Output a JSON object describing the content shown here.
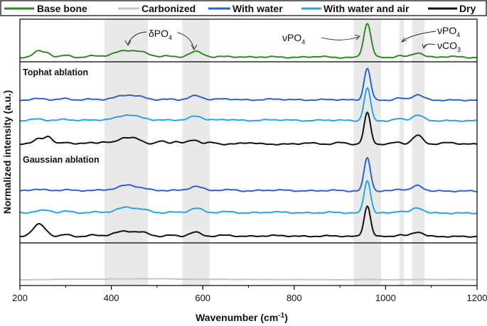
{
  "chart_data": {
    "type": "line",
    "title": "",
    "xlabel_main": "Wavenumber (cm",
    "xlabel_sup": "-1",
    "xlabel_end": ")",
    "ylabel": "Normalized intensity (a.u.)",
    "xlim": [
      200,
      1200
    ],
    "xticks": [
      200,
      400,
      600,
      800,
      1000,
      1200
    ],
    "legend_position": "top",
    "legend": [
      {
        "name": "Base bone",
        "color": "#2e8b22"
      },
      {
        "name": "Carbonized",
        "color": "#c4c4c4"
      },
      {
        "name": "With water",
        "color": "#2a62d2"
      },
      {
        "name": "With water and air",
        "color": "#2aa3e4"
      },
      {
        "name": "Dry",
        "color": "#111111"
      }
    ],
    "highlight_bands_cm": [
      [
        385,
        480
      ],
      [
        555,
        615
      ],
      [
        930,
        990
      ],
      [
        1030,
        1040
      ],
      [
        1058,
        1085
      ]
    ],
    "panels": [
      {
        "name": "top",
        "label": ""
      },
      {
        "name": "tophat",
        "label": "Tophat ablation"
      },
      {
        "name": "gaussian",
        "label": "Gaussian ablation"
      },
      {
        "name": "carbonized",
        "label": ""
      }
    ],
    "annotations": [
      {
        "id": "dpo4",
        "main": "δPO",
        "sub": "4",
        "x": 480
      },
      {
        "id": "vpo4",
        "main": "νPO",
        "sub": "4",
        "x": 860
      },
      {
        "id": "vpo4b",
        "main": "νPO",
        "sub": "4",
        "x": 1135
      },
      {
        "id": "vco3",
        "main": "νCO",
        "sub": "3",
        "x": 1135
      }
    ],
    "peak_model": {
      "note": "Spectra shown as normalized intensity (0-1) vs wavenumber; approximated by Gaussian peaks [center_cm, height, width_cm]"
    },
    "series": [
      {
        "name": "Base bone",
        "panel": "top",
        "color": "#2e8b22",
        "peaks": [
          [
            240,
            0.18,
            12
          ],
          [
            262,
            0.1,
            9
          ],
          [
            300,
            0.06,
            12
          ],
          [
            360,
            0.04,
            15
          ],
          [
            433,
            0.2,
            28
          ],
          [
            470,
            0.07,
            18
          ],
          [
            520,
            0.04,
            14
          ],
          [
            585,
            0.17,
            16
          ],
          [
            655,
            0.03,
            20
          ],
          [
            740,
            0.02,
            30
          ],
          [
            850,
            0.03,
            20
          ],
          [
            960,
            1.0,
            8
          ],
          [
            1030,
            0.05,
            10
          ],
          [
            1070,
            0.14,
            12
          ],
          [
            1140,
            0.03,
            20
          ]
        ]
      },
      {
        "name": "With water (tophat)",
        "panel": "tophat",
        "color": "#2a62d2",
        "peaks": [
          [
            245,
            0.05,
            15
          ],
          [
            300,
            0.05,
            12
          ],
          [
            360,
            0.03,
            15
          ],
          [
            432,
            0.16,
            22
          ],
          [
            470,
            0.06,
            15
          ],
          [
            530,
            0.03,
            15
          ],
          [
            585,
            0.14,
            14
          ],
          [
            650,
            0.04,
            20
          ],
          [
            760,
            0.03,
            30
          ],
          [
            880,
            0.02,
            25
          ],
          [
            960,
            1.0,
            7
          ],
          [
            1030,
            0.06,
            10
          ],
          [
            1070,
            0.17,
            12
          ]
        ]
      },
      {
        "name": "With water and air (tophat)",
        "panel": "tophat",
        "color": "#2aa3e4",
        "peaks": [
          [
            240,
            0.06,
            12
          ],
          [
            300,
            0.05,
            12
          ],
          [
            360,
            0.03,
            15
          ],
          [
            432,
            0.17,
            22
          ],
          [
            470,
            0.06,
            15
          ],
          [
            530,
            0.03,
            15
          ],
          [
            585,
            0.15,
            14
          ],
          [
            650,
            0.04,
            20
          ],
          [
            760,
            0.03,
            30
          ],
          [
            880,
            0.02,
            25
          ],
          [
            960,
            1.0,
            7
          ],
          [
            1030,
            0.06,
            10
          ],
          [
            1070,
            0.17,
            12
          ]
        ]
      },
      {
        "name": "Dry (tophat)",
        "panel": "tophat",
        "color": "#111111",
        "peaks": [
          [
            240,
            0.18,
            10
          ],
          [
            262,
            0.22,
            9
          ],
          [
            300,
            0.07,
            10
          ],
          [
            355,
            0.06,
            12
          ],
          [
            385,
            0.05,
            10
          ],
          [
            425,
            0.18,
            15
          ],
          [
            455,
            0.16,
            14
          ],
          [
            510,
            0.1,
            9
          ],
          [
            540,
            0.08,
            10
          ],
          [
            580,
            0.14,
            12
          ],
          [
            620,
            0.05,
            10
          ],
          [
            700,
            0.05,
            15
          ],
          [
            830,
            0.04,
            15
          ],
          [
            900,
            0.05,
            12
          ],
          [
            960,
            1.0,
            7
          ],
          [
            1025,
            0.06,
            10
          ],
          [
            1070,
            0.28,
            11
          ],
          [
            1140,
            0.05,
            15
          ]
        ]
      },
      {
        "name": "With water (gaussian)",
        "panel": "gaussian",
        "color": "#2a62d2",
        "peaks": [
          [
            240,
            0.06,
            15
          ],
          [
            300,
            0.05,
            12
          ],
          [
            360,
            0.03,
            15
          ],
          [
            432,
            0.17,
            22
          ],
          [
            470,
            0.06,
            15
          ],
          [
            530,
            0.03,
            15
          ],
          [
            585,
            0.15,
            14
          ],
          [
            650,
            0.04,
            20
          ],
          [
            760,
            0.03,
            30
          ],
          [
            880,
            0.02,
            25
          ],
          [
            960,
            1.0,
            7
          ],
          [
            1030,
            0.06,
            10
          ],
          [
            1070,
            0.16,
            12
          ]
        ]
      },
      {
        "name": "With water and air (gaussian)",
        "panel": "gaussian",
        "color": "#2aa3e4",
        "peaks": [
          [
            240,
            0.07,
            12
          ],
          [
            262,
            0.06,
            10
          ],
          [
            300,
            0.06,
            12
          ],
          [
            360,
            0.03,
            15
          ],
          [
            432,
            0.17,
            22
          ],
          [
            470,
            0.08,
            15
          ],
          [
            530,
            0.03,
            15
          ],
          [
            585,
            0.15,
            14
          ],
          [
            650,
            0.04,
            20
          ],
          [
            760,
            0.03,
            30
          ],
          [
            880,
            0.02,
            25
          ],
          [
            960,
            1.0,
            7
          ],
          [
            1030,
            0.06,
            10
          ],
          [
            1070,
            0.16,
            12
          ]
        ]
      },
      {
        "name": "Dry (gaussian)",
        "panel": "gaussian",
        "color": "#111111",
        "peaks": [
          [
            242,
            0.4,
            14
          ],
          [
            300,
            0.06,
            10
          ],
          [
            360,
            0.04,
            12
          ],
          [
            430,
            0.17,
            25
          ],
          [
            470,
            0.09,
            15
          ],
          [
            530,
            0.04,
            12
          ],
          [
            583,
            0.14,
            13
          ],
          [
            650,
            0.04,
            18
          ],
          [
            760,
            0.03,
            30
          ],
          [
            880,
            0.02,
            25
          ],
          [
            960,
            1.0,
            7
          ],
          [
            1030,
            0.05,
            10
          ],
          [
            1070,
            0.15,
            12
          ]
        ]
      },
      {
        "name": "Carbonized",
        "panel": "carbonized",
        "color": "#c4c4c4",
        "peaks": [
          [
            300,
            0.15,
            40
          ],
          [
            430,
            0.25,
            60
          ],
          [
            520,
            0.2,
            40
          ],
          [
            620,
            0.15,
            40
          ],
          [
            720,
            0.1,
            40
          ],
          [
            820,
            0.08,
            40
          ],
          [
            960,
            0.12,
            20
          ],
          [
            1070,
            0.08,
            25
          ],
          [
            1150,
            0.1,
            40
          ]
        ]
      }
    ]
  }
}
